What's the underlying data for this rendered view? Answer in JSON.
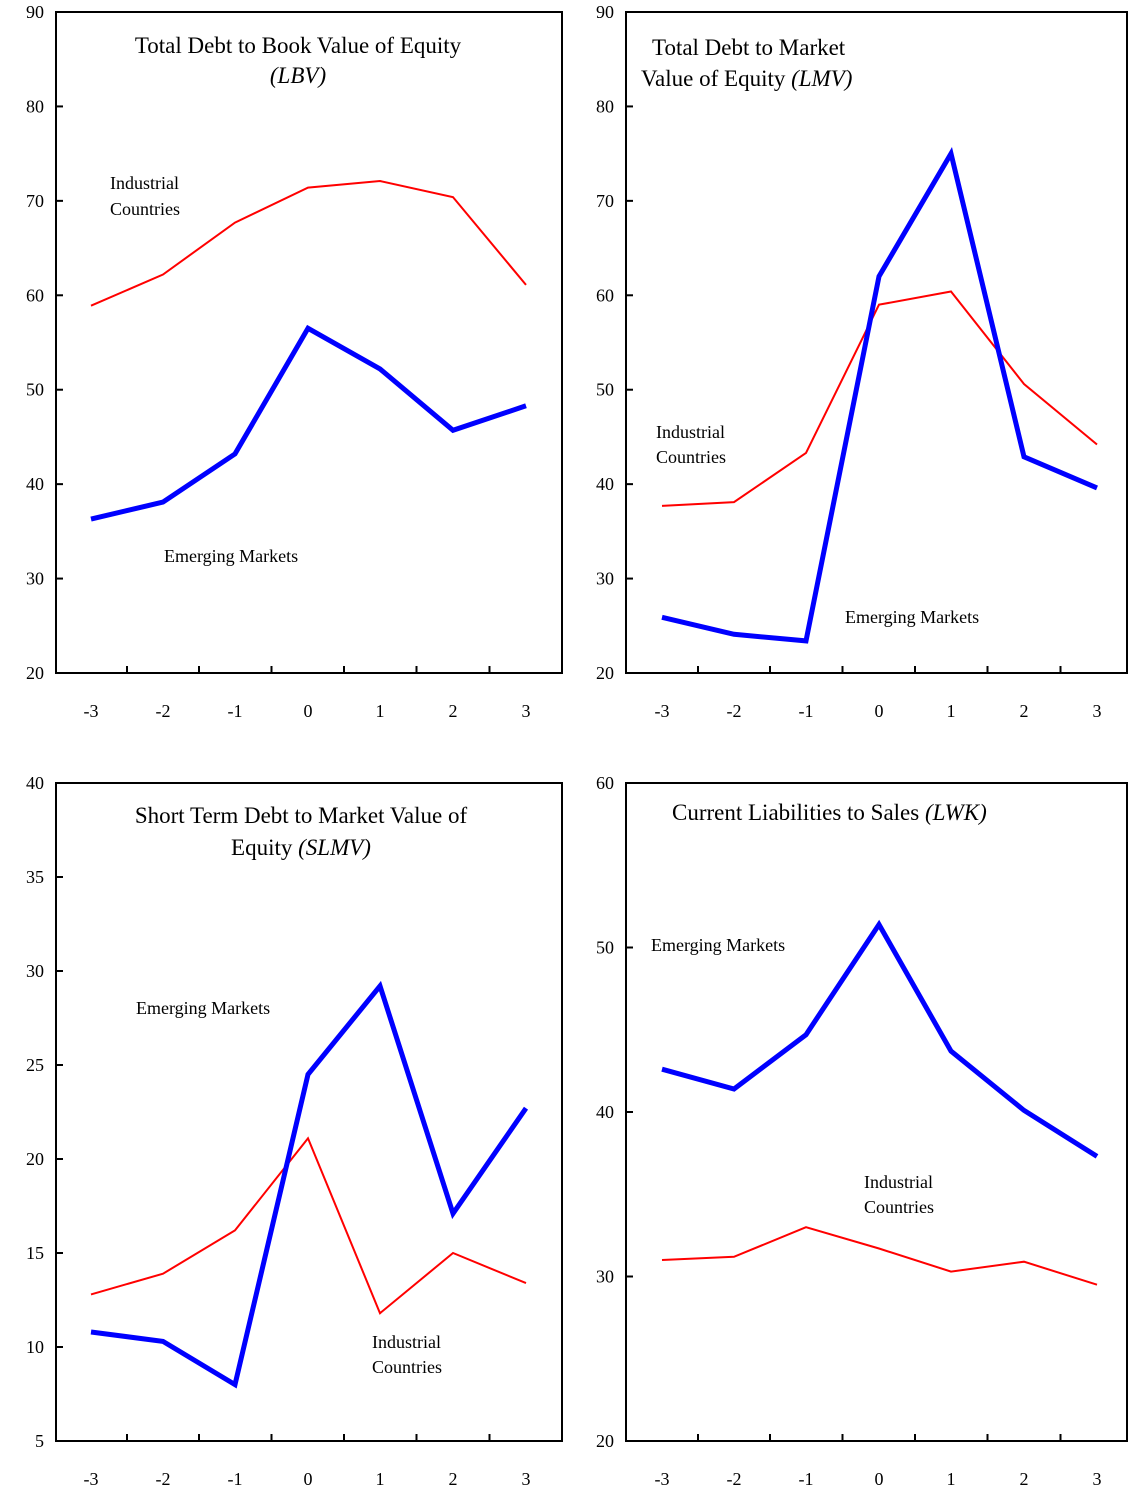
{
  "chart_data": [
    {
      "type": "line",
      "title": "Total Debt to Book Value of Equity",
      "title_abbrev": "(LBV)",
      "categories": [
        "-3",
        "-2",
        "-1",
        "0",
        "1",
        "2",
        "3"
      ],
      "ylim": [
        20,
        90
      ],
      "yticks": [
        "20",
        "30",
        "40",
        "50",
        "60",
        "70",
        "80",
        "90"
      ],
      "series": [
        {
          "name": "Industrial Countries",
          "color": "#ff0000",
          "values": [
            58.9,
            62.2,
            67.7,
            71.4,
            72.1,
            70.4,
            61.1
          ]
        },
        {
          "name": "Emerging Markets",
          "color": "#0000ff",
          "values": [
            36.3,
            38.1,
            43.2,
            56.5,
            52.2,
            45.7,
            48.3
          ]
        }
      ],
      "annotations": [
        {
          "text": "Industrial",
          "series": 0
        },
        {
          "text": "Countries",
          "series": 0
        },
        {
          "text": "Emerging Markets",
          "series": 1
        }
      ]
    },
    {
      "type": "line",
      "title": "Total Debt to Market",
      "title2": "Value of Equity",
      "title_abbrev": "(LMV)",
      "categories": [
        "-3",
        "-2",
        "-1",
        "0",
        "1",
        "2",
        "3"
      ],
      "ylim": [
        20,
        90
      ],
      "yticks": [
        "20",
        "30",
        "40",
        "50",
        "60",
        "70",
        "80",
        "90"
      ],
      "series": [
        {
          "name": "Industrial Countries",
          "color": "#ff0000",
          "values": [
            37.7,
            38.1,
            43.3,
            59.0,
            60.4,
            50.6,
            44.2
          ]
        },
        {
          "name": "Emerging Markets",
          "color": "#0000ff",
          "values": [
            25.9,
            24.1,
            23.4,
            62.0,
            75.0,
            42.9,
            39.6
          ]
        }
      ],
      "annotations": [
        {
          "text": "Industrial",
          "series": 0
        },
        {
          "text": "Countries",
          "series": 0
        },
        {
          "text": "Emerging Markets",
          "series": 1
        }
      ]
    },
    {
      "type": "line",
      "title": "Short Term Debt to Market Value of",
      "title2": "Equity",
      "title_abbrev": "(SLMV)",
      "categories": [
        "-3",
        "-2",
        "-1",
        "0",
        "1",
        "2",
        "3"
      ],
      "ylim": [
        5,
        40
      ],
      "yticks": [
        "5",
        "10",
        "15",
        "20",
        "25",
        "30",
        "35",
        "40"
      ],
      "series": [
        {
          "name": "Industrial Countries",
          "color": "#ff0000",
          "values": [
            12.8,
            13.9,
            16.2,
            21.1,
            11.8,
            15.0,
            13.4
          ]
        },
        {
          "name": "Emerging Markets",
          "color": "#0000ff",
          "values": [
            10.8,
            10.3,
            8.0,
            24.5,
            29.2,
            17.1,
            22.7
          ]
        }
      ],
      "annotations": [
        {
          "text": "Emerging Markets",
          "series": 1
        },
        {
          "text": "Industrial",
          "series": 0
        },
        {
          "text": "Countries",
          "series": 0
        }
      ]
    },
    {
      "type": "line",
      "title": "Current Liabilities to Sales",
      "title_abbrev": "(LWK)",
      "categories": [
        "-3",
        "-2",
        "-1",
        "0",
        "1",
        "2",
        "3"
      ],
      "ylim": [
        20,
        60
      ],
      "yticks": [
        "20",
        "30",
        "40",
        "50",
        "60"
      ],
      "series": [
        {
          "name": "Industrial Countries",
          "color": "#ff0000",
          "values": [
            31.0,
            31.2,
            33.0,
            31.7,
            30.3,
            30.9,
            29.5
          ]
        },
        {
          "name": "Emerging Markets",
          "color": "#0000ff",
          "values": [
            42.6,
            41.4,
            44.7,
            51.4,
            43.7,
            40.1,
            37.3
          ]
        }
      ],
      "annotations": [
        {
          "text": "Emerging Markets",
          "series": 1
        },
        {
          "text": "Industrial",
          "series": 0
        },
        {
          "text": "Countries",
          "series": 0
        }
      ]
    }
  ]
}
